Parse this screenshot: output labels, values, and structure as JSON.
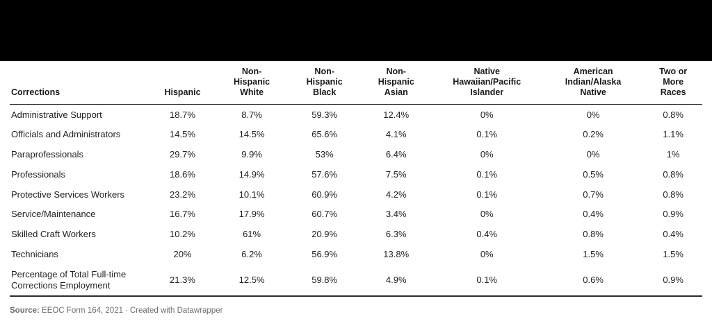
{
  "top_bar": {
    "note": "solid black banner"
  },
  "table": {
    "header_display": [
      "Corrections",
      "Hispanic",
      "Non-\nHispanic\nWhite",
      "Non-\nHispanic\nBlack",
      "Non-\nHispanic\nAsian",
      "Native\nHawaiian/Pacific\nIslander",
      "American\nIndian/Alaska\nNative",
      "Two or\nMore\nRaces"
    ],
    "rows": [
      {
        "label": "Administrative Support",
        "values": [
          "18.7%",
          "8.7%",
          "59.3%",
          "12.4%",
          "0%",
          "0%",
          "0.8%"
        ]
      },
      {
        "label": "Officials and Administrators",
        "values": [
          "14.5%",
          "14.5%",
          "65.6%",
          "4.1%",
          "0.1%",
          "0.2%",
          "1.1%"
        ]
      },
      {
        "label": "Paraprofessionals",
        "values": [
          "29.7%",
          "9.9%",
          "53%",
          "6.4%",
          "0%",
          "0%",
          "1%"
        ]
      },
      {
        "label": "Professionals",
        "values": [
          "18.6%",
          "14.9%",
          "57.6%",
          "7.5%",
          "0.1%",
          "0.5%",
          "0.8%"
        ]
      },
      {
        "label": "Protective Services Workers",
        "values": [
          "23.2%",
          "10.1%",
          "60.9%",
          "4.2%",
          "0.1%",
          "0.7%",
          "0.8%"
        ]
      },
      {
        "label": "Service/Maintenance",
        "values": [
          "16.7%",
          "17.9%",
          "60.7%",
          "3.4%",
          "0%",
          "0.4%",
          "0.9%"
        ]
      },
      {
        "label": "Skilled Craft Workers",
        "values": [
          "10.2%",
          "61%",
          "20.9%",
          "6.3%",
          "0.4%",
          "0.8%",
          "0.4%"
        ]
      },
      {
        "label": "Technicians",
        "values": [
          "20%",
          "6.2%",
          "56.9%",
          "13.8%",
          "0%",
          "1.5%",
          "1.5%"
        ]
      },
      {
        "label": "Percentage of Total Full-time Corrections Employment",
        "values": [
          "21.3%",
          "12.5%",
          "59.8%",
          "4.9%",
          "0.1%",
          "0.6%",
          "0.9%"
        ]
      }
    ]
  },
  "footer": {
    "source_label": "Source:",
    "source_text": " EEOC Form 164, 2021",
    "separator": "·",
    "attribution": "Created with Datawrapper"
  },
  "colors": {
    "top_bar": "#000000",
    "header_text": "#1a1a1a",
    "body_text": "#222222",
    "rule": "#2b2b2b",
    "footer_text": "#6e6e6e",
    "background": "#ffffff"
  },
  "chart_data": {
    "type": "table",
    "title": "",
    "columns": [
      "Corrections",
      "Hispanic",
      "Non-Hispanic White",
      "Non-Hispanic Black",
      "Non-Hispanic Asian",
      "Native Hawaiian/Pacific Islander",
      "American Indian/Alaska Native",
      "Two or More Races"
    ],
    "rows": [
      [
        "Administrative Support",
        18.7,
        8.7,
        59.3,
        12.4,
        0,
        0,
        0.8
      ],
      [
        "Officials and Administrators",
        14.5,
        14.5,
        65.6,
        4.1,
        0.1,
        0.2,
        1.1
      ],
      [
        "Paraprofessionals",
        29.7,
        9.9,
        53,
        6.4,
        0,
        0,
        1
      ],
      [
        "Professionals",
        18.6,
        14.9,
        57.6,
        7.5,
        0.1,
        0.5,
        0.8
      ],
      [
        "Protective Services Workers",
        23.2,
        10.1,
        60.9,
        4.2,
        0.1,
        0.7,
        0.8
      ],
      [
        "Service/Maintenance",
        16.7,
        17.9,
        60.7,
        3.4,
        0,
        0.4,
        0.9
      ],
      [
        "Skilled Craft Workers",
        10.2,
        61,
        20.9,
        6.3,
        0.4,
        0.8,
        0.4
      ],
      [
        "Technicians",
        20,
        6.2,
        56.9,
        13.8,
        0,
        1.5,
        1.5
      ],
      [
        "Percentage of Total Full-time Corrections Employment",
        21.3,
        12.5,
        59.8,
        4.9,
        0.1,
        0.6,
        0.9
      ]
    ],
    "units": "percent",
    "source": "EEOC Form 164, 2021",
    "tool": "Datawrapper"
  }
}
